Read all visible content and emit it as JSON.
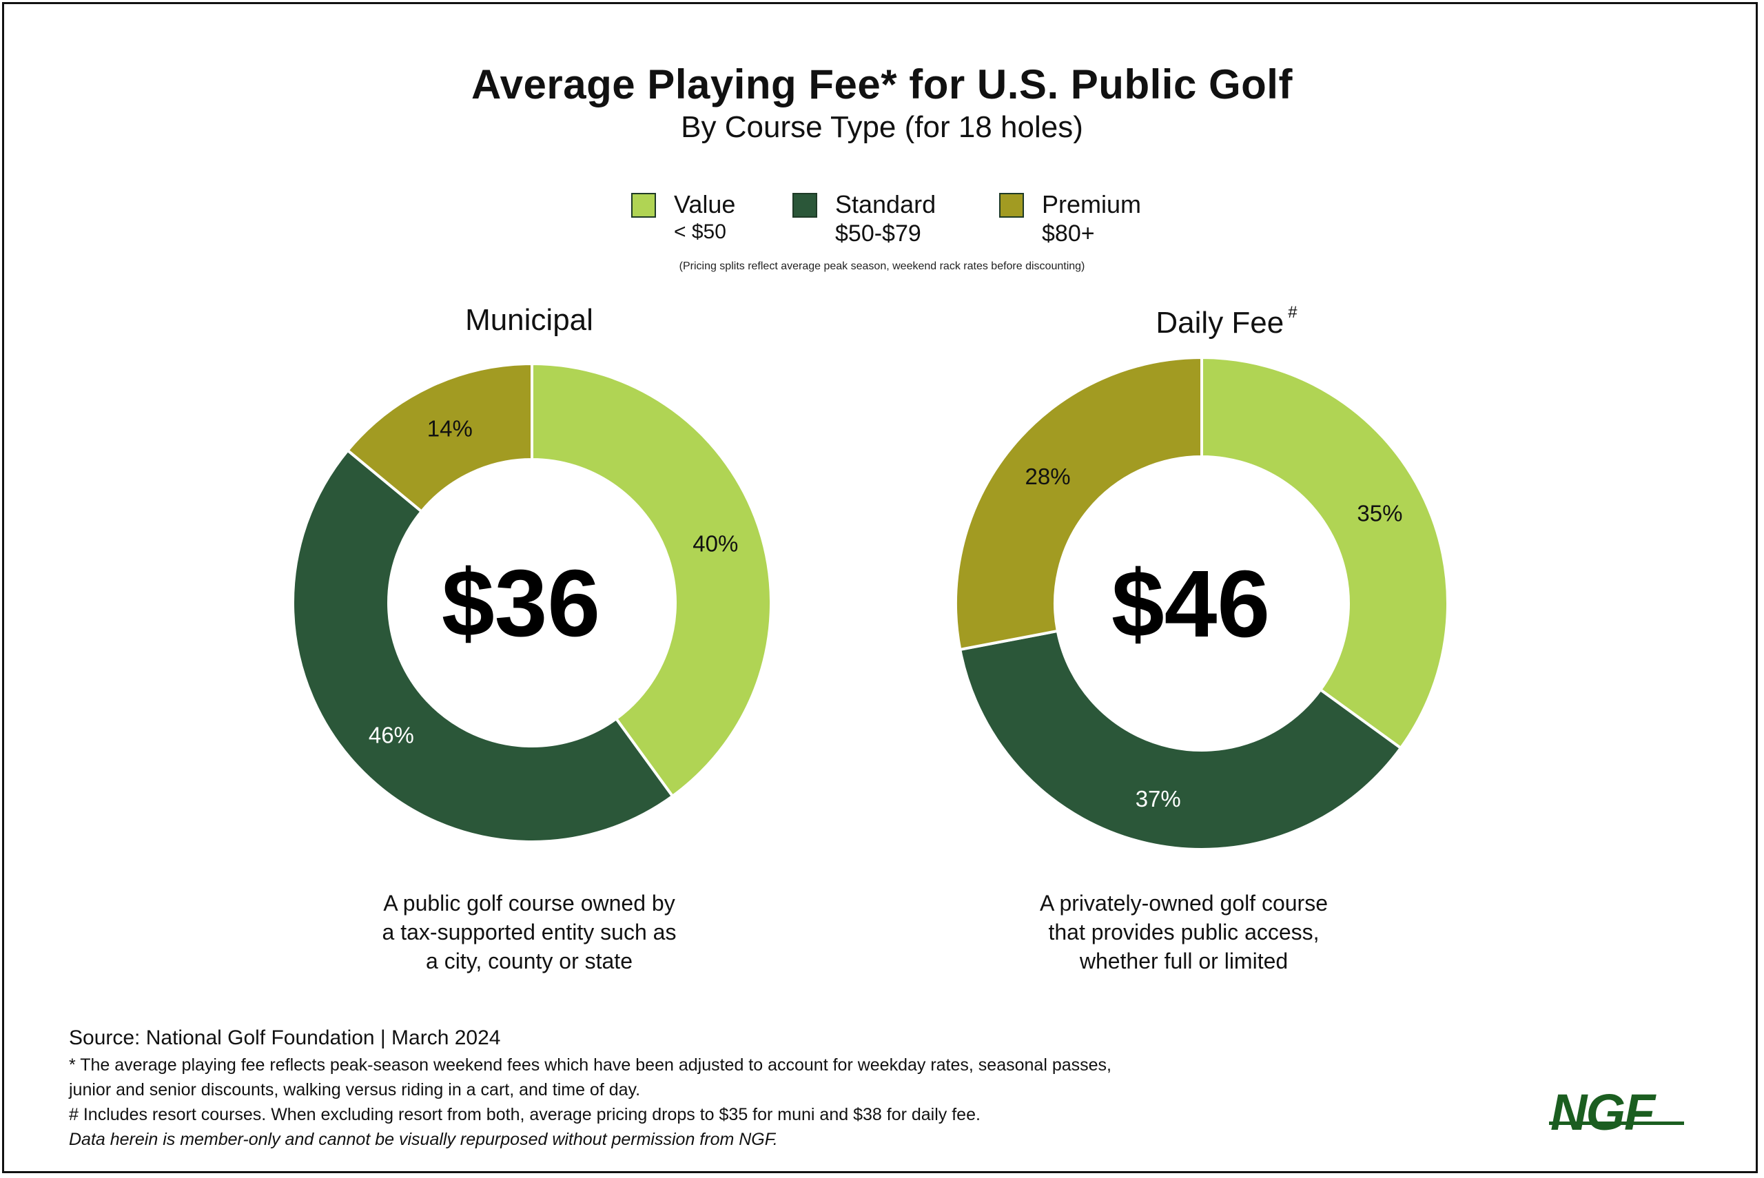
{
  "title": "Average Playing Fee* for U.S. Public Golf",
  "subtitle": "By Course Type (for 18 holes)",
  "legend": [
    {
      "label": "Value",
      "range": "< $50",
      "color": "#b0d454"
    },
    {
      "label": "Standard",
      "range": "$50-$79",
      "color": "#2b5739"
    },
    {
      "label": "Premium",
      "range": "$80+",
      "color": "#a29b22"
    }
  ],
  "legend_note": "(Pricing splits reflect average peak season, weekend rack rates before discounting)",
  "chart_data": [
    {
      "type": "pie",
      "title": "Municipal",
      "center_value": "$36",
      "categories": [
        "Value",
        "Standard",
        "Premium"
      ],
      "values": [
        40,
        46,
        14
      ],
      "labels": [
        "40%",
        "46%",
        "14%"
      ],
      "colors": [
        "#b0d454",
        "#2b5739",
        "#a29b22"
      ],
      "description": "A public golf course owned by\na tax-supported entity such as\na city, county or state"
    },
    {
      "type": "pie",
      "title": "Daily Fee",
      "title_mark": "#",
      "center_value": "$46",
      "categories": [
        "Value",
        "Standard",
        "Premium"
      ],
      "values": [
        35,
        37,
        28
      ],
      "labels": [
        "35%",
        "37%",
        "28%"
      ],
      "colors": [
        "#b0d454",
        "#2b5739",
        "#a29b22"
      ],
      "description": "A privately-owned golf course\nthat provides public access,\nwhether full or limited"
    }
  ],
  "footer": {
    "source": "Source: National Golf Foundation | March 2024",
    "note1": "* The average playing fee reflects peak-season weekend fees which have been adjusted to account for weekday rates, seasonal passes,",
    "note2": "junior and senior discounts, walking versus riding in a cart, and time of day.",
    "note3": "# Includes resort courses. When excluding resort from both, average pricing drops to $35 for muni and $38 for daily fee.",
    "disclaimer": "Data herein is member-only and cannot be visually repurposed without permission from NGF."
  },
  "logo": "NGF"
}
